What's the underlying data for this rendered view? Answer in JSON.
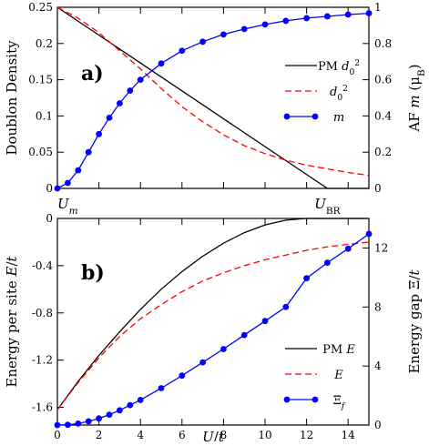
{
  "chart_data": [
    {
      "id": "top",
      "type": "line",
      "panel_label": "a)",
      "xlabel": "",
      "ylabel_left": "Doublon Density",
      "ylabel_right": "AF m (μB)",
      "xlim": [
        0,
        15
      ],
      "ylim_left": [
        0,
        0.25
      ],
      "ylim_right": [
        0,
        1
      ],
      "yticks_left": [
        "0",
        "0.05",
        "0.1",
        "0.15",
        "0.2",
        "0.25"
      ],
      "yticks_right": [
        "0",
        "0.2",
        "0.4",
        "0.6",
        "0.8",
        "1"
      ],
      "x_annotations": [
        {
          "x": 0.0,
          "label": "U_m"
        },
        {
          "x": 13.0,
          "label": "U_BR"
        }
      ],
      "legend_position": "right",
      "series": [
        {
          "name": "PM d0^2",
          "axis": "left",
          "style": "solid",
          "color": "#000000",
          "x": [
            0,
            13,
            15
          ],
          "y": [
            0.25,
            0,
            0
          ]
        },
        {
          "name": "d0^2",
          "axis": "left",
          "style": "dashed",
          "color": "#ff0000",
          "x": [
            0,
            1,
            2,
            3,
            4,
            5,
            6,
            7,
            8,
            9,
            10,
            11,
            12,
            13,
            14,
            15
          ],
          "y": [
            0.25,
            0.235,
            0.215,
            0.19,
            0.165,
            0.138,
            0.113,
            0.092,
            0.074,
            0.059,
            0.048,
            0.039,
            0.032,
            0.027,
            0.022,
            0.018
          ]
        },
        {
          "name": "m",
          "axis": "right",
          "style": "line-markers",
          "color": "#0000ff",
          "x": [
            0,
            0.5,
            1,
            1.5,
            2,
            2.5,
            3,
            3.5,
            4,
            5,
            6,
            7,
            8,
            9,
            10,
            11,
            12,
            13,
            14,
            15
          ],
          "y": [
            0,
            0.03,
            0.1,
            0.2,
            0.3,
            0.39,
            0.47,
            0.54,
            0.6,
            0.69,
            0.76,
            0.81,
            0.85,
            0.88,
            0.905,
            0.925,
            0.94,
            0.95,
            0.96,
            0.967
          ]
        }
      ]
    },
    {
      "id": "bottom",
      "type": "line",
      "panel_label": "b)",
      "xlabel": "U/t",
      "ylabel_left": "Energy per site E/t",
      "ylabel_right": "Energy gap Ξ/t",
      "xlim": [
        0,
        15
      ],
      "ylim_left": [
        -1.75,
        0
      ],
      "ylim_right": [
        0,
        14
      ],
      "xticks": [
        "0",
        "2",
        "4",
        "6",
        "8",
        "10",
        "12",
        "14"
      ],
      "yticks_left": [
        "-1.6",
        "-1.2",
        "-0.8",
        "-0.4",
        "0"
      ],
      "yticks_right": [
        "0",
        "4",
        "8",
        "12"
      ],
      "legend_position": "lower-right",
      "series": [
        {
          "name": "PM E",
          "axis": "left",
          "style": "solid",
          "color": "#000000",
          "x": [
            0,
            1,
            2,
            3,
            4,
            5,
            6,
            7,
            8,
            9,
            10,
            11,
            12,
            13,
            14,
            15
          ],
          "y": [
            -1.62,
            -1.38,
            -1.16,
            -0.96,
            -0.77,
            -0.6,
            -0.45,
            -0.32,
            -0.21,
            -0.12,
            -0.055,
            -0.015,
            0,
            0,
            0,
            0
          ]
        },
        {
          "name": "E",
          "axis": "left",
          "style": "dashed",
          "color": "#ff0000",
          "x": [
            0,
            1,
            2,
            3,
            4,
            5,
            6,
            7,
            8,
            9,
            10,
            11,
            12,
            13,
            14,
            15
          ],
          "y": [
            -1.62,
            -1.39,
            -1.18,
            -1.0,
            -0.85,
            -0.73,
            -0.62,
            -0.53,
            -0.46,
            -0.4,
            -0.35,
            -0.31,
            -0.27,
            -0.24,
            -0.22,
            -0.2
          ]
        },
        {
          "name": "Ξf",
          "axis": "right",
          "style": "line-markers",
          "color": "#0000ff",
          "x": [
            0,
            0.5,
            1,
            1.5,
            2,
            2.5,
            3,
            3.5,
            4,
            5,
            6,
            7,
            8,
            9,
            10,
            11,
            12,
            13,
            14,
            15
          ],
          "y": [
            0,
            0.02,
            0.1,
            0.25,
            0.45,
            0.7,
            1.0,
            1.35,
            1.7,
            2.5,
            3.35,
            4.25,
            5.15,
            6.1,
            7.05,
            8.0,
            9.95,
            11.0,
            11.95,
            12.95
          ]
        }
      ]
    }
  ]
}
